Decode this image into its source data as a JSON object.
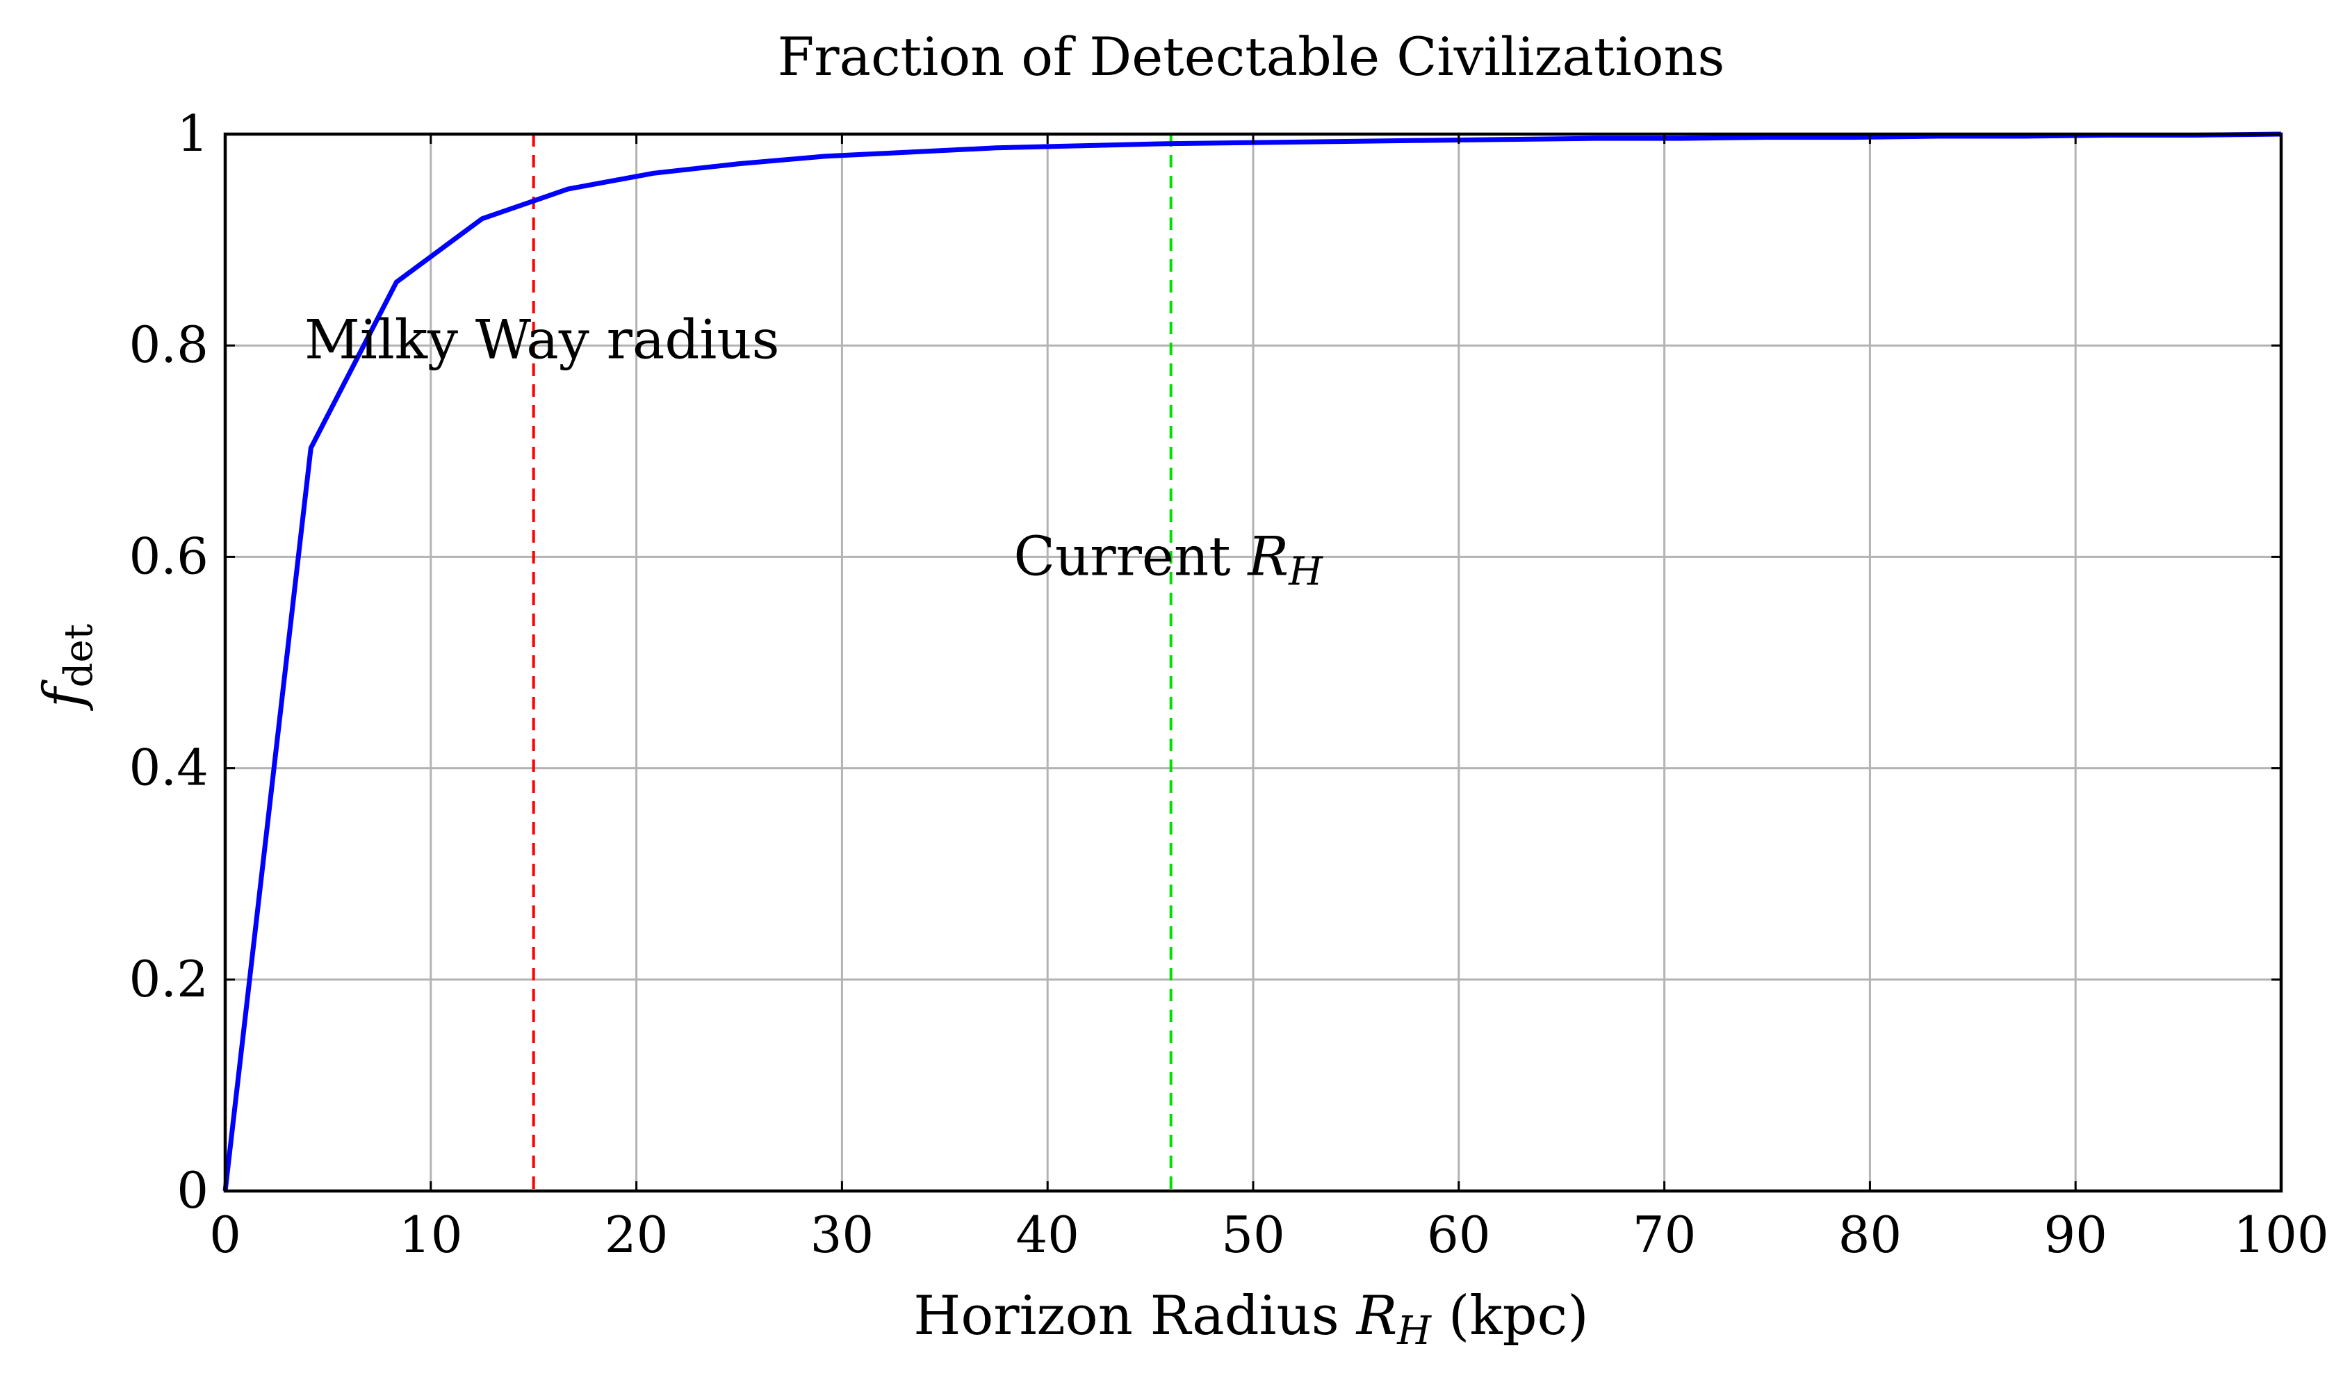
{
  "chart_data": {
    "type": "line",
    "title": "Fraction of Detectable Civilizations",
    "xlabel": {
      "main": "Horizon Radius ",
      "var": "R",
      "sub": "H",
      "unit": " (kpc)"
    },
    "ylabel": {
      "var": "f",
      "sub": "det"
    },
    "xlim": [
      0,
      100
    ],
    "ylim": [
      0,
      1
    ],
    "x_ticks": [
      0,
      10,
      20,
      30,
      40,
      50,
      60,
      70,
      80,
      90,
      100
    ],
    "x_tick_labels": [
      "0",
      "10",
      "20",
      "30",
      "40",
      "50",
      "60",
      "70",
      "80",
      "90",
      "100"
    ],
    "y_ticks": [
      0,
      0.2,
      0.4,
      0.6,
      0.8,
      1
    ],
    "y_tick_labels": [
      "0",
      "0.2",
      "0.4",
      "0.6",
      "0.8",
      "1"
    ],
    "grid": true,
    "series": [
      {
        "name": "f_det",
        "color": "#0000ff",
        "x": [
          0,
          4.17,
          8.33,
          12.5,
          16.67,
          20.83,
          25,
          29.17,
          33.33,
          37.5,
          41.67,
          45.83,
          50,
          54.17,
          58.33,
          62.5,
          66.67,
          70.83,
          75,
          79.17,
          83.33,
          87.5,
          91.67,
          95.83,
          100
        ],
        "y": [
          0,
          0.703,
          0.86,
          0.92,
          0.948,
          0.963,
          0.972,
          0.979,
          0.983,
          0.987,
          0.989,
          0.991,
          0.992,
          0.993,
          0.994,
          0.995,
          0.996,
          0.996,
          0.997,
          0.997,
          0.998,
          0.998,
          0.999,
          0.999,
          1.0
        ]
      }
    ],
    "vlines": [
      {
        "x": 15,
        "color": "#ff0000",
        "label": "Milky Way radius",
        "label_y": 0.805
      },
      {
        "x": 46,
        "color": "#00e000",
        "label_main": "Current ",
        "label_var": "R",
        "label_sub": "H",
        "label_y": 0.6
      }
    ]
  }
}
